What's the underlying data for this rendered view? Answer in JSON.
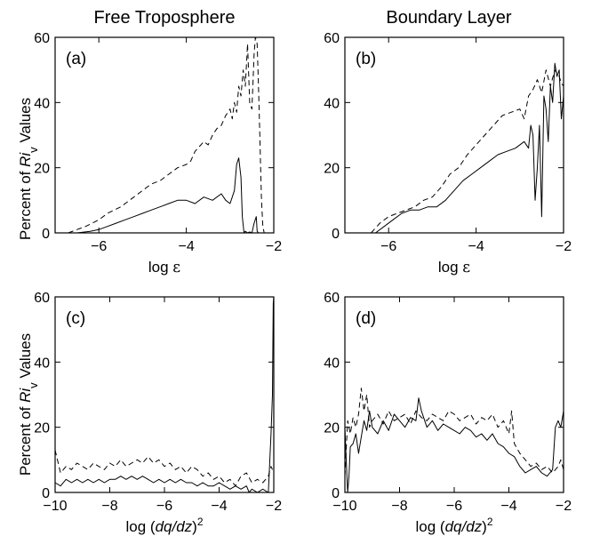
{
  "column_titles": [
    "Free Troposphere",
    "Boundary Layer"
  ],
  "ylabel": {
    "prefix": "Percent of ",
    "italic": "Ri",
    "sub": "v",
    "suffix": " Values"
  },
  "chart_data": [
    {
      "type": "line",
      "panel": "(a)",
      "xlabel": {
        "prefix": "log ",
        "greek": "ε"
      },
      "xlim": [
        -7,
        -2
      ],
      "ylim": [
        0,
        60
      ],
      "xticks": [
        -6,
        -4,
        -2
      ],
      "yticks": [
        0,
        20,
        40,
        60
      ],
      "grid": false,
      "series": [
        {
          "style": "dashed",
          "x": [
            -6.7,
            -6.5,
            -6.3,
            -6.0,
            -5.8,
            -5.5,
            -5.2,
            -5.0,
            -4.8,
            -4.6,
            -4.4,
            -4.2,
            -4.0,
            -3.9,
            -3.8,
            -3.6,
            -3.5,
            -3.4,
            -3.3,
            -3.2,
            -3.1,
            -3.0,
            -2.95,
            -2.9,
            -2.85,
            -2.8,
            -2.75,
            -2.7,
            -2.65,
            -2.6,
            -2.55,
            -2.5,
            -2.45,
            -2.42,
            -2.38,
            -2.35,
            -2.32,
            -2.3,
            -2.28,
            -2.25,
            -2.22
          ],
          "y": [
            0,
            1,
            2,
            4,
            6,
            8,
            11,
            13,
            15,
            16,
            18,
            20,
            21,
            22,
            25,
            28,
            27,
            30,
            32,
            33,
            36,
            38,
            35,
            40,
            37,
            45,
            42,
            50,
            45,
            58,
            40,
            38,
            55,
            60,
            58,
            45,
            30,
            20,
            10,
            2,
            0
          ]
        },
        {
          "style": "solid",
          "x": [
            -6.5,
            -6.2,
            -6.0,
            -5.8,
            -5.6,
            -5.4,
            -5.2,
            -5.0,
            -4.8,
            -4.6,
            -4.4,
            -4.2,
            -4.0,
            -3.8,
            -3.6,
            -3.4,
            -3.2,
            -3.1,
            -3.0,
            -2.95,
            -2.9,
            -2.85,
            -2.8,
            -2.75,
            -2.72,
            -2.68,
            -2.65,
            -2.6,
            -2.55,
            -2.5,
            -2.45,
            -2.4,
            -2.38,
            -2.35,
            -2.3
          ],
          "y": [
            0,
            0.5,
            1,
            2,
            3,
            4,
            5,
            6,
            7,
            8,
            9,
            10,
            10,
            9,
            11,
            10,
            12,
            10,
            9,
            11,
            13,
            21,
            23,
            17,
            5,
            0,
            0.5,
            0,
            0.3,
            0,
            3,
            5,
            0.5,
            0,
            0
          ]
        }
      ]
    },
    {
      "type": "line",
      "panel": "(b)",
      "xlabel": {
        "prefix": "log ",
        "greek": "ε"
      },
      "xlim": [
        -7,
        -2
      ],
      "ylim": [
        0,
        60
      ],
      "xticks": [
        -6,
        -4,
        -2
      ],
      "yticks": [
        0,
        20,
        40,
        60
      ],
      "grid": false,
      "series": [
        {
          "style": "dashed",
          "x": [
            -6.4,
            -6.2,
            -6.0,
            -5.8,
            -5.6,
            -5.4,
            -5.2,
            -5.0,
            -4.8,
            -4.6,
            -4.4,
            -4.2,
            -4.0,
            -3.8,
            -3.6,
            -3.4,
            -3.2,
            -3.0,
            -2.9,
            -2.8,
            -2.7,
            -2.6,
            -2.5,
            -2.4,
            -2.3,
            -2.2,
            -2.1,
            -2.05,
            -2.0
          ],
          "y": [
            0,
            3,
            5,
            6,
            7,
            8,
            10,
            11,
            14,
            18,
            20,
            24,
            27,
            30,
            33,
            36,
            37,
            38,
            35,
            42,
            44,
            47,
            43,
            50,
            45,
            50,
            48,
            46,
            45
          ]
        },
        {
          "style": "solid",
          "x": [
            -6.3,
            -6.1,
            -5.9,
            -5.7,
            -5.5,
            -5.3,
            -5.1,
            -4.9,
            -4.7,
            -4.5,
            -4.3,
            -4.1,
            -3.9,
            -3.7,
            -3.5,
            -3.3,
            -3.1,
            -2.9,
            -2.8,
            -2.75,
            -2.7,
            -2.65,
            -2.6,
            -2.55,
            -2.5,
            -2.45,
            -2.4,
            -2.35,
            -2.3,
            -2.25,
            -2.2,
            -2.15,
            -2.1,
            -2.05,
            -2.0
          ],
          "y": [
            0,
            2,
            4,
            6,
            7,
            7,
            8,
            8,
            10,
            13,
            16,
            18,
            20,
            22,
            24,
            25,
            26,
            28,
            26,
            33,
            30,
            10,
            20,
            33,
            5,
            42,
            38,
            28,
            45,
            40,
            52,
            48,
            50,
            35,
            42
          ]
        }
      ]
    },
    {
      "type": "line",
      "panel": "(c)",
      "xlabel": {
        "prefix": "log (",
        "italic": "dq/dz",
        "suffix": ")",
        "sup": "2"
      },
      "xlim": [
        -10,
        -2
      ],
      "ylim": [
        0,
        60
      ],
      "xticks": [
        -10,
        -8,
        -6,
        -4,
        -2
      ],
      "yticks": [
        0,
        20,
        40,
        60
      ],
      "grid": false,
      "series": [
        {
          "style": "dashed",
          "x": [
            -10,
            -9.8,
            -9.6,
            -9.4,
            -9.2,
            -9.0,
            -8.8,
            -8.6,
            -8.4,
            -8.2,
            -8.0,
            -7.8,
            -7.6,
            -7.4,
            -7.2,
            -7.0,
            -6.8,
            -6.6,
            -6.4,
            -6.2,
            -6.0,
            -5.8,
            -5.6,
            -5.4,
            -5.2,
            -5.0,
            -4.8,
            -4.6,
            -4.4,
            -4.2,
            -4.0,
            -3.8,
            -3.6,
            -3.4,
            -3.2,
            -3.0,
            -2.8,
            -2.6,
            -2.4,
            -2.2,
            -2.1,
            -2.05
          ],
          "y": [
            13,
            6,
            8,
            7,
            9,
            8,
            7,
            9,
            8,
            7,
            9,
            8,
            10,
            8,
            9,
            10,
            9,
            11,
            9,
            10,
            8,
            9,
            7,
            8,
            6,
            8,
            7,
            5,
            6,
            4,
            5,
            3,
            4,
            2,
            5,
            6,
            3,
            4,
            3,
            5,
            8,
            7
          ]
        },
        {
          "style": "solid",
          "x": [
            -10,
            -9.8,
            -9.6,
            -9.4,
            -9.2,
            -9.0,
            -8.8,
            -8.6,
            -8.4,
            -8.2,
            -8.0,
            -7.8,
            -7.6,
            -7.4,
            -7.2,
            -7.0,
            -6.8,
            -6.6,
            -6.4,
            -6.2,
            -6.0,
            -5.8,
            -5.6,
            -5.4,
            -5.2,
            -5.0,
            -4.8,
            -4.6,
            -4.4,
            -4.2,
            -4.0,
            -3.8,
            -3.6,
            -3.4,
            -3.2,
            -3.0,
            -2.9,
            -2.8,
            -2.6,
            -2.4,
            -2.2,
            -2.1,
            -2.05,
            -2.02,
            -2.0
          ],
          "y": [
            3,
            2,
            4,
            3,
            4,
            3,
            4,
            3,
            4,
            3,
            4,
            4,
            5,
            4,
            5,
            4,
            5,
            4,
            3,
            4,
            3,
            4,
            3,
            4,
            3,
            3,
            2,
            3,
            2,
            2,
            3,
            2,
            1,
            2,
            1,
            2,
            0,
            1,
            0,
            1,
            0,
            18,
            30,
            58,
            60
          ]
        }
      ]
    },
    {
      "type": "line",
      "panel": "(d)",
      "xlabel": {
        "prefix": "log (",
        "italic": "dq/dz",
        "suffix": ")",
        "sup": "2"
      },
      "xlim": [
        -10,
        -2
      ],
      "ylim": [
        0,
        60
      ],
      "xticks": [
        -10,
        -8,
        -6,
        -4,
        -2
      ],
      "yticks": [
        0,
        20,
        40,
        60
      ],
      "grid": false,
      "series": [
        {
          "style": "dashed",
          "x": [
            -10,
            -9.9,
            -9.8,
            -9.7,
            -9.6,
            -9.5,
            -9.4,
            -9.3,
            -9.2,
            -9.1,
            -9.0,
            -8.8,
            -8.6,
            -8.4,
            -8.2,
            -8.0,
            -7.8,
            -7.6,
            -7.4,
            -7.2,
            -7.0,
            -6.8,
            -6.6,
            -6.4,
            -6.2,
            -6.0,
            -5.8,
            -5.6,
            -5.4,
            -5.2,
            -5.0,
            -4.8,
            -4.6,
            -4.4,
            -4.2,
            -4.0,
            -3.9,
            -3.8,
            -3.6,
            -3.4,
            -3.2,
            -3.0,
            -2.8,
            -2.6,
            -2.4,
            -2.2,
            -2.1,
            -2.0
          ],
          "y": [
            5,
            22,
            18,
            23,
            20,
            24,
            32,
            25,
            30,
            20,
            22,
            24,
            21,
            25,
            22,
            23,
            24,
            21,
            25,
            23,
            22,
            24,
            23,
            22,
            25,
            24,
            22,
            23,
            24,
            21,
            23,
            22,
            24,
            20,
            22,
            18,
            25,
            15,
            12,
            10,
            8,
            9,
            7,
            8,
            6,
            8,
            10,
            7
          ]
        },
        {
          "style": "solid",
          "x": [
            -10,
            -9.95,
            -9.9,
            -9.85,
            -9.8,
            -9.7,
            -9.6,
            -9.5,
            -9.4,
            -9.3,
            -9.2,
            -9.1,
            -9.0,
            -8.8,
            -8.6,
            -8.4,
            -8.2,
            -8.0,
            -7.8,
            -7.6,
            -7.4,
            -7.3,
            -7.2,
            -7.0,
            -6.8,
            -6.6,
            -6.4,
            -6.2,
            -6.0,
            -5.8,
            -5.6,
            -5.4,
            -5.2,
            -5.0,
            -4.8,
            -4.6,
            -4.4,
            -4.2,
            -4.0,
            -3.8,
            -3.6,
            -3.4,
            -3.2,
            -3.0,
            -2.8,
            -2.6,
            -2.4,
            -2.3,
            -2.2,
            -2.1,
            -2.0
          ],
          "y": [
            20,
            10,
            0,
            5,
            14,
            15,
            18,
            12,
            17,
            22,
            19,
            25,
            20,
            18,
            22,
            19,
            24,
            22,
            20,
            23,
            22,
            29,
            25,
            20,
            22,
            19,
            21,
            20,
            19,
            18,
            20,
            19,
            17,
            18,
            16,
            18,
            15,
            14,
            12,
            11,
            8,
            6,
            7,
            8,
            6,
            5,
            7,
            20,
            22,
            20,
            25
          ]
        }
      ]
    }
  ]
}
